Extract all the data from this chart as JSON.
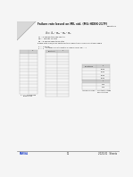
{
  "title": "Failure rate based on MIL std. (MIL-HDBK-217F)",
  "subtitle": "Resistors",
  "formula": "\\u03bb = \\u03bb\\u2080 \\u03c0M \\u03c0E \\u03c0P",
  "leg1": "\\u03bb\\u2080 = ambient failure factor",
  "leg2": "\\u03c0M = Quality factor",
  "leg3": "\\u03c0E = Environmental factor",
  "note": "Please note: Pinh/Noise Factor for this Subsection Provides is not applicable",
  "fq_val": "fQ = 0.0003",
  "fe_val": "fE = 1    Corresponding to match or level bus fac fac = 1",
  "footer_left": "PARISA",
  "footer_center": "11",
  "footer_right": "2020-01   Sheets",
  "bg_color": "#f5f5f5",
  "text_color": "#222222",
  "lc": "#aaaaaa",
  "hdr_color": "#d0d0d0",
  "t1_rows": 13,
  "t2_rows": 15,
  "t3_rows": 4,
  "t4_rows": 2
}
